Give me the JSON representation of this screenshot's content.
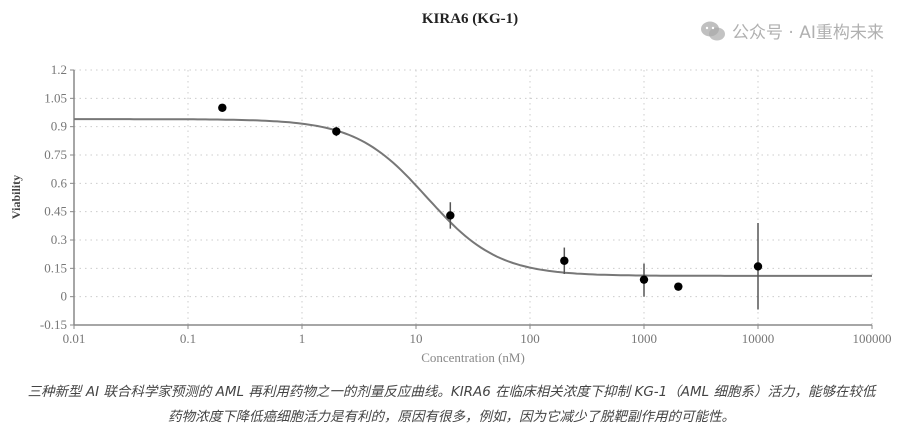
{
  "chart_data": {
    "type": "scatter",
    "title": "KIRA6 (KG-1)",
    "xlabel": "Concentration (nM)",
    "ylabel": "Viability",
    "xscale": "log",
    "xlim": [
      0.01,
      100000
    ],
    "ylim": [
      -0.15,
      1.2
    ],
    "xticks": [
      "0.01",
      "0.1",
      "1",
      "10",
      "100",
      "1000",
      "10000",
      "100000"
    ],
    "yticks": [
      "-0.15",
      "0",
      "0.15",
      "0.3",
      "0.45",
      "0.6",
      "0.75",
      "0.9",
      "1.05",
      "1.2"
    ],
    "grid": true,
    "points": [
      {
        "x": 0.2,
        "y": 1.0,
        "err_low": 1.0,
        "err_high": 1.0
      },
      {
        "x": 2,
        "y": 0.875,
        "err_low": 0.85,
        "err_high": 0.9
      },
      {
        "x": 20,
        "y": 0.43,
        "err_low": 0.36,
        "err_high": 0.5
      },
      {
        "x": 200,
        "y": 0.19,
        "err_low": 0.12,
        "err_high": 0.26
      },
      {
        "x": 1000,
        "y": 0.09,
        "err_low": 0.0,
        "err_high": 0.175
      },
      {
        "x": 2000,
        "y": 0.053,
        "err_low": 0.053,
        "err_high": 0.053
      },
      {
        "x": 10000,
        "y": 0.16,
        "err_low": -0.068,
        "err_high": 0.39
      }
    ],
    "fit_curve": {
      "model": "4-parameter logistic",
      "top": 0.94,
      "bottom": 0.11,
      "ic50": 12.5,
      "hill": 1.39
    },
    "colors": {
      "points": "#000000",
      "curve": "#777777",
      "axis": "#888888",
      "grid": "#cccccc"
    }
  },
  "caption": {
    "line1": "三种新型 AI 联合科学家预测的 AML 再利用药物之一的剂量反应曲线。KIRA6 在临床相关浓度下抑制 KG-1（AML 细胞系）活力，能够在较低",
    "line2": "药物浓度下降低癌细胞活力是有利的，原因有很多，例如，因为它减少了脱靶副作用的可能性。"
  },
  "watermark": {
    "text": "公众号 · AI重构未来",
    "icon": "wechat-icon"
  }
}
